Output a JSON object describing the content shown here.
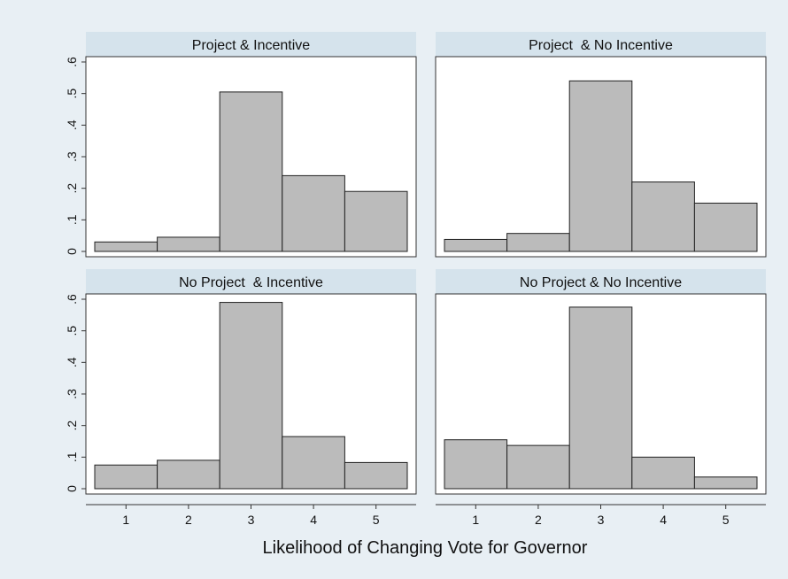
{
  "chart_data": {
    "type": "bar",
    "layout": "2x2 facets, shared axes",
    "xlabel": "Likelihood of Changing Vote for Governor",
    "ylabel": "",
    "categories": [
      "1",
      "2",
      "3",
      "4",
      "5"
    ],
    "ylim": [
      0,
      0.6
    ],
    "y_ticks": [
      0,
      0.1,
      0.2,
      0.3,
      0.4,
      0.5,
      0.6
    ],
    "y_tick_labels": [
      "0",
      ".1",
      ".2",
      ".3",
      ".4",
      ".5",
      ".6"
    ],
    "colors": {
      "bar": "#bbbbbb",
      "outline": "#222222",
      "strip": "#d5e3ec",
      "background": "#e8eff4"
    },
    "facets": [
      {
        "title": "Project & Incentive",
        "values": [
          0.03,
          0.045,
          0.505,
          0.24,
          0.19
        ]
      },
      {
        "title": "Project  & No Incentive",
        "values": [
          0.038,
          0.057,
          0.54,
          0.22,
          0.153
        ]
      },
      {
        "title": "No Project  & Incentive",
        "values": [
          0.075,
          0.09,
          0.59,
          0.165,
          0.083
        ]
      },
      {
        "title": "No Project & No Incentive",
        "values": [
          0.155,
          0.137,
          0.575,
          0.1,
          0.037
        ]
      }
    ]
  }
}
